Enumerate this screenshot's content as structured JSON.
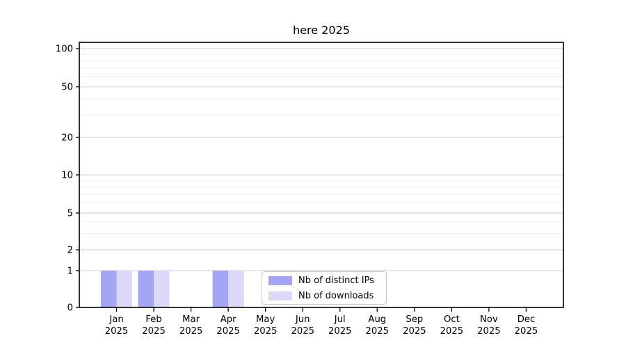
{
  "chart_data": {
    "type": "bar",
    "title": "here 2025",
    "categories": [
      "Jan",
      "Feb",
      "Mar",
      "Apr",
      "May",
      "Jun",
      "Jul",
      "Aug",
      "Sep",
      "Oct",
      "Nov",
      "Dec"
    ],
    "category_year": "2025",
    "series": [
      {
        "name": "Nb of distinct IPs",
        "color": "#a5a5f5",
        "values": [
          1,
          1,
          0,
          1,
          0,
          0,
          0,
          0,
          0,
          0,
          0,
          0
        ]
      },
      {
        "name": "Nb of downloads",
        "color": "#dadaf8",
        "values": [
          1,
          1,
          0,
          1,
          0,
          0,
          0,
          0,
          0,
          0,
          0,
          0
        ]
      }
    ],
    "yaxis": {
      "ticks": [
        0,
        1,
        2,
        5,
        10,
        20,
        50,
        100
      ],
      "minor_ticks": [
        3,
        4,
        6,
        7,
        8,
        9,
        30,
        40,
        60,
        70,
        80,
        90
      ],
      "scale": "log1p",
      "lim": [
        0,
        100
      ]
    },
    "grid": "horizontal",
    "legend_position": "inside-bottom-center"
  },
  "colors": {
    "grid_major": "#cfcfcf",
    "grid_minor": "#efefef",
    "axis": "#000000",
    "background": "#ffffff"
  }
}
